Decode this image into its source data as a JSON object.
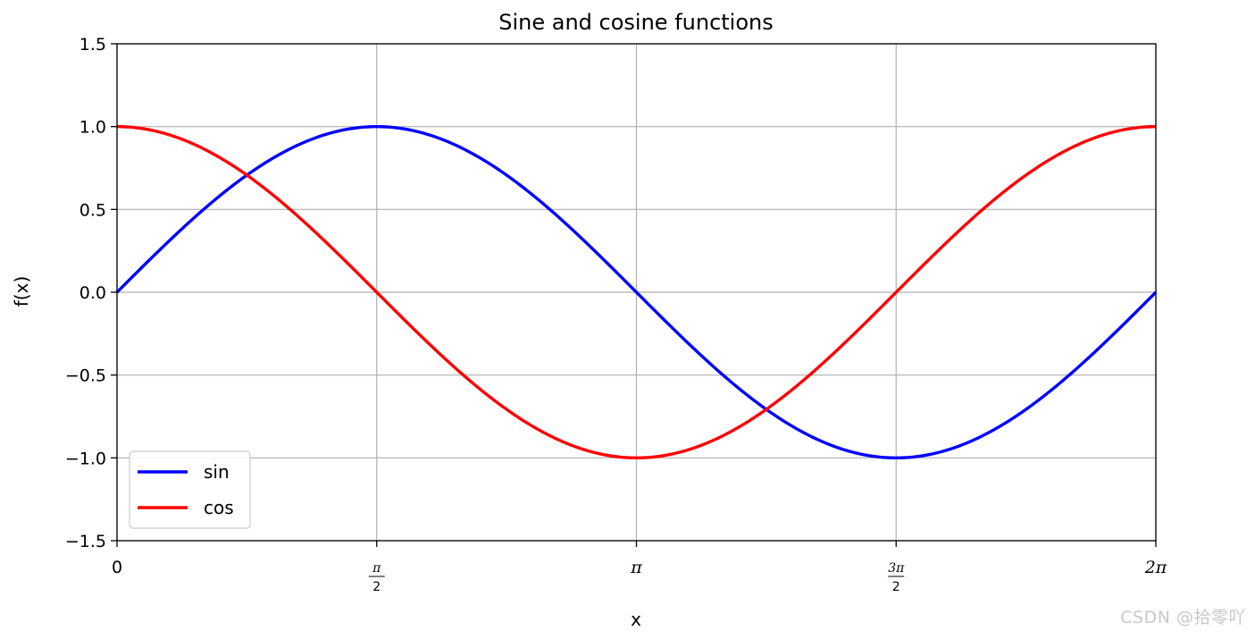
{
  "chart_data": {
    "type": "line",
    "title": "Sine and cosine functions",
    "xlabel": "x",
    "ylabel": "f(x)",
    "xlim": [
      0,
      6.283185307
    ],
    "ylim": [
      -1.5,
      1.5
    ],
    "grid": true,
    "legend_position": "lower-left",
    "yticks": [
      {
        "value": -1.5,
        "label": "−1.5"
      },
      {
        "value": -1.0,
        "label": "−1.0"
      },
      {
        "value": -0.5,
        "label": "−0.5"
      },
      {
        "value": 0.0,
        "label": "0.0"
      },
      {
        "value": 0.5,
        "label": "0.5"
      },
      {
        "value": 1.0,
        "label": "1.0"
      },
      {
        "value": 1.5,
        "label": "1.5"
      }
    ],
    "xticks": [
      {
        "value": 0,
        "label": "0"
      },
      {
        "value": 1.570796327,
        "label": "π/2"
      },
      {
        "value": 3.141592654,
        "label": "π"
      },
      {
        "value": 4.71238898,
        "label": "3π/2"
      },
      {
        "value": 6.283185307,
        "label": "2π"
      }
    ],
    "series": [
      {
        "name": "sin",
        "color": "#0000ff",
        "function": "sin",
        "x": [
          0,
          0.3927,
          0.7854,
          1.1781,
          1.5708,
          1.9635,
          2.3562,
          2.7489,
          3.1416,
          3.5343,
          3.927,
          4.3197,
          4.7124,
          5.1051,
          5.4978,
          5.8905,
          6.2832
        ],
        "y": [
          0,
          0.383,
          0.707,
          0.924,
          1.0,
          0.924,
          0.707,
          0.383,
          0,
          -0.383,
          -0.707,
          -0.924,
          -1.0,
          -0.924,
          -0.707,
          -0.383,
          0
        ]
      },
      {
        "name": "cos",
        "color": "#ff0000",
        "function": "cos",
        "x": [
          0,
          0.3927,
          0.7854,
          1.1781,
          1.5708,
          1.9635,
          2.3562,
          2.7489,
          3.1416,
          3.5343,
          3.927,
          4.3197,
          4.7124,
          5.1051,
          5.4978,
          5.8905,
          6.2832
        ],
        "y": [
          1.0,
          0.924,
          0.707,
          0.383,
          0,
          -0.383,
          -0.707,
          -0.924,
          -1.0,
          -0.924,
          -0.707,
          -0.383,
          0,
          0.383,
          0.707,
          0.924,
          1.0
        ]
      }
    ]
  },
  "watermark": "CSDN @拾零吖"
}
